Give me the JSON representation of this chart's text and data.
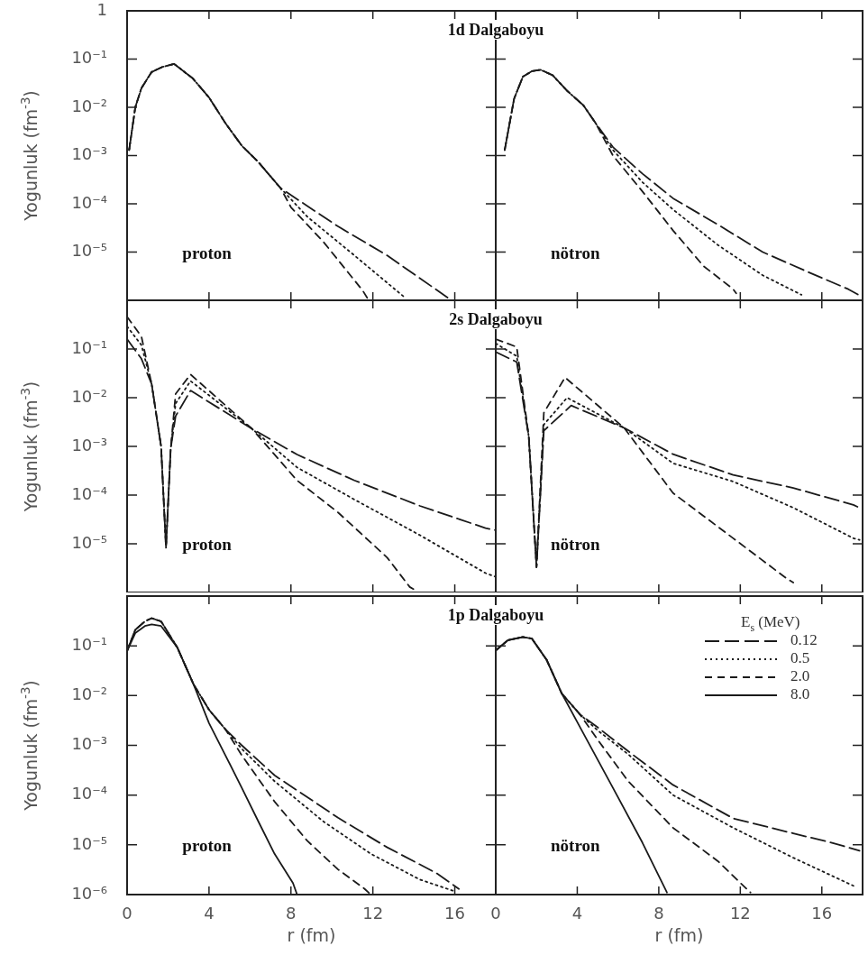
{
  "chart_data": [
    {
      "type": "line",
      "title": "1d Dalgaboyu",
      "ylabel": "Yogunluk (fm$^{-3}$)",
      "annotations": [
        "proton"
      ],
      "log": "y",
      "xlim": [
        0,
        18
      ],
      "xticks": [
        0,
        4,
        8,
        12,
        16
      ],
      "ylim": [
        1e-06,
        1
      ],
      "yticks": [
        {
          "value": 1e-06,
          "label": null
        },
        {
          "value": 1e-05,
          "label": "10⁻⁵"
        },
        {
          "value": 0.0001,
          "label": "10⁻⁴"
        },
        {
          "value": 0.001,
          "label": "10⁻³"
        },
        {
          "value": 0.01,
          "label": "10⁻²"
        },
        {
          "value": 0.1,
          "label": "10⁻¹"
        },
        1
      ],
      "tick_labels": "y",
      "series": [
        {
          "color": "#1a1a1a",
          "line_style": "dashed",
          "x": [
            0.1,
            0.4,
            0.7,
            1.2,
            1.7,
            2.3,
            3.2,
            4.0,
            4.8,
            5.6,
            6.4,
            7.5,
            10.3,
            12.7,
            15.7
          ],
          "values": [
            0.0013,
            0.01,
            0.025,
            0.054,
            0.068,
            0.079,
            0.04,
            0.016,
            0.0047,
            0.0016,
            0.00074,
            0.00021,
            3.4e-05,
            8.5e-06,
            1.1e-06
          ]
        },
        {
          "color": "#1a1a1a",
          "line_style": "dotted",
          "x": [
            0.1,
            0.4,
            0.7,
            1.2,
            1.7,
            2.3,
            3.2,
            4.0,
            4.8,
            5.6,
            6.4,
            7.5,
            8.8,
            11.1,
            13.5
          ],
          "values": [
            0.0013,
            0.01,
            0.025,
            0.054,
            0.068,
            0.079,
            0.04,
            0.016,
            0.0047,
            0.0016,
            0.00074,
            0.00021,
            5.4e-05,
            8.5e-06,
            1.2e-06
          ]
        },
        {
          "color": "#1a1a1a",
          "line_style": "dashed",
          "x": [
            0.1,
            0.4,
            0.7,
            1.2,
            1.7,
            2.3,
            3.2,
            4.0,
            4.8,
            5.6,
            6.4,
            7.5,
            8.0,
            9.6,
            11.5,
            11.8
          ],
          "values": [
            0.0013,
            0.01,
            0.025,
            0.054,
            0.068,
            0.079,
            0.04,
            0.016,
            0.0047,
            0.0016,
            0.00074,
            0.00021,
            8.5e-05,
            1.6e-05,
            1.6e-06,
            1e-06
          ]
        }
      ]
    },
    {
      "type": "line",
      "annotations": [
        "nötron"
      ],
      "log": "y",
      "xlim": [
        0,
        18
      ],
      "xticks": [
        0,
        4,
        8,
        12,
        16
      ],
      "ylim": [
        1e-06,
        1
      ],
      "yticks": [
        1e-06,
        1e-05,
        0.0001,
        0.001,
        0.01,
        0.1,
        1
      ],
      "tick_labels": false,
      "series": [
        {
          "color": "#1a1a1a",
          "line_style": "dashed",
          "x": [
            0.44,
            0.9,
            1.33,
            1.77,
            2.2,
            2.8,
            3.5,
            4.3,
            4.9,
            5.75,
            7.2,
            8.7,
            10.9,
            13.1,
            15.3,
            17.3,
            17.8
          ],
          "values": [
            0.0013,
            0.015,
            0.043,
            0.056,
            0.06,
            0.046,
            0.022,
            0.011,
            0.0047,
            0.0015,
            0.00042,
            0.00013,
            3.7e-05,
            1e-05,
            3.9e-06,
            1.7e-06,
            1.3e-06
          ]
        },
        {
          "color": "#1a1a1a",
          "line_style": "dotted",
          "x": [
            0.44,
            0.9,
            1.33,
            1.77,
            2.2,
            2.8,
            3.5,
            4.3,
            4.9,
            5.75,
            7.2,
            8.7,
            10.9,
            13.1,
            15.0
          ],
          "values": [
            0.0013,
            0.015,
            0.043,
            0.056,
            0.06,
            0.046,
            0.022,
            0.011,
            0.0047,
            0.0013,
            0.00028,
            7.6e-05,
            1.4e-05,
            3.3e-06,
            1.3e-06
          ]
        },
        {
          "color": "#1a1a1a",
          "line_style": "dashed",
          "x": [
            0.44,
            0.9,
            1.33,
            1.77,
            2.2,
            2.8,
            3.5,
            4.3,
            4.9,
            5.75,
            7.2,
            8.7,
            10.2,
            11.65,
            11.8
          ],
          "values": [
            0.0013,
            0.015,
            0.043,
            0.056,
            0.06,
            0.046,
            0.022,
            0.011,
            0.0047,
            0.001,
            0.00018,
            2.8e-05,
            5.1e-06,
            1.7e-06,
            1.4e-06
          ]
        }
      ]
    },
    {
      "type": "line",
      "title": "2s Dalgaboyu",
      "ylabel": "Yogunluk (fm$^{-3}$)",
      "annotations": [
        "proton"
      ],
      "log": "y",
      "xlim": [
        0,
        18
      ],
      "xticks": [
        0,
        4,
        8,
        12,
        16
      ],
      "ylim": [
        1e-06,
        1
      ],
      "yticks": [
        {
          "value": 1e-06,
          "label": null
        },
        {
          "value": 1e-05,
          "label": "10⁻⁵"
        },
        {
          "value": 0.0001,
          "label": "10⁻⁴"
        },
        {
          "value": 0.001,
          "label": "10⁻³"
        },
        {
          "value": 0.01,
          "label": "10⁻²"
        },
        {
          "value": 0.1,
          "label": "10⁻¹"
        },
        {
          "value": 1,
          "label": null
        }
      ],
      "tick_labels": "y",
      "series": [
        {
          "color": "#1a1a1a",
          "line_style": "dashed",
          "x": [
            0,
            0.7,
            1.2,
            1.66,
            1.9,
            2.13,
            2.37,
            3.1,
            6.1,
            8.3,
            11.1,
            14.3,
            17.5,
            18.0
          ],
          "values": [
            0.16,
            0.063,
            0.019,
            0.001,
            8.3e-06,
            0.00091,
            0.0042,
            0.014,
            0.0023,
            0.00068,
            0.0002,
            6e-05,
            2.1e-05,
            1.9e-05
          ]
        },
        {
          "color": "#1a1a1a",
          "line_style": "dotted",
          "x": [
            0,
            0.7,
            1.2,
            1.66,
            1.9,
            2.13,
            2.37,
            3.1,
            6.1,
            8.3,
            11.1,
            14.3,
            17.5,
            18.0
          ],
          "values": [
            0.29,
            0.12,
            0.019,
            0.001,
            8.3e-06,
            0.00091,
            0.0076,
            0.022,
            0.0023,
            0.00037,
            8.1e-05,
            1.5e-05,
            2.5e-06,
            2.1e-06
          ]
        },
        {
          "color": "#1a1a1a",
          "line_style": "dashed",
          "x": [
            0,
            0.7,
            1.2,
            1.66,
            1.9,
            2.13,
            2.37,
            3.1,
            6.1,
            8.3,
            10.3,
            12.7,
            13.8,
            14.1
          ],
          "values": [
            0.46,
            0.18,
            0.019,
            0.001,
            8.3e-06,
            0.00091,
            0.012,
            0.03,
            0.0023,
            0.0002,
            4.4e-05,
            5.2e-06,
            1.3e-06,
            1.1e-06
          ]
        }
      ]
    },
    {
      "type": "line",
      "annotations": [
        "nötron"
      ],
      "log": "y",
      "xlim": [
        0,
        18
      ],
      "xticks": [
        0,
        4,
        8,
        12,
        16
      ],
      "ylim": [
        1e-06,
        1
      ],
      "yticks": [
        1e-06,
        1e-05,
        0.0001,
        0.001,
        0.01,
        0.1,
        1
      ],
      "tick_labels": false,
      "series": [
        {
          "color": "#1a1a1a",
          "line_style": "dashed",
          "x": [
            0,
            1.03,
            1.62,
            2.0,
            2.36,
            3.7,
            6.3,
            8.7,
            11.65,
            14.6,
            17.55,
            17.85
          ],
          "values": [
            0.087,
            0.054,
            0.0016,
            3.3e-06,
            0.0021,
            0.0069,
            0.0024,
            0.00069,
            0.00026,
            0.00014,
            6.3e-05,
            5.5e-05
          ]
        },
        {
          "color": "#1a1a1a",
          "line_style": "dotted",
          "x": [
            0,
            1.03,
            1.62,
            2.0,
            2.36,
            3.5,
            6.3,
            8.7,
            11.65,
            14.6,
            17.55,
            17.85
          ],
          "values": [
            0.13,
            0.071,
            0.0016,
            3.3e-06,
            0.0028,
            0.01,
            0.0024,
            0.00045,
            0.00019,
            5.5e-05,
            1.3e-05,
            1.2e-05
          ]
        },
        {
          "color": "#1a1a1a",
          "line_style": "dashed",
          "x": [
            0,
            1.03,
            1.62,
            2.0,
            2.36,
            3.4,
            6.3,
            8.7,
            11.65,
            14.3,
            14.6
          ],
          "values": [
            0.16,
            0.11,
            0.0016,
            3.3e-06,
            0.0049,
            0.026,
            0.0024,
            0.00011,
            1.3e-05,
            1.9e-06,
            1.6e-06
          ]
        }
      ]
    },
    {
      "type": "line",
      "title": "1p Dalgaboyu",
      "xlabel": "r (fm)",
      "ylabel": "Yogunluk (fm$^{-3}$)",
      "annotations": [
        "proton"
      ],
      "log": "y",
      "xlim": [
        0,
        18
      ],
      "xticks": [
        0,
        4,
        8,
        12,
        16
      ],
      "ylim": [
        1e-06,
        1
      ],
      "yticks": [
        {
          "value": 1e-06,
          "label": "10⁻⁶"
        },
        {
          "value": 1e-05,
          "label": "10⁻⁵"
        },
        {
          "value": 0.0001,
          "label": "10⁻⁴"
        },
        {
          "value": 0.001,
          "label": "10⁻³"
        },
        {
          "value": 0.01,
          "label": "10⁻²"
        },
        {
          "value": 0.1,
          "label": "10⁻¹"
        },
        {
          "value": 1,
          "label": null
        }
      ],
      "series": [
        {
          "color": "#1a1a1a",
          "line_style": "dashed",
          "x": [
            0,
            0.4,
            0.87,
            1.2,
            1.66,
            2.45,
            3.24,
            4.0,
            4.8,
            5.6,
            7.2,
            10.3,
            12.7,
            15.1,
            16.2
          ],
          "values": [
            0.079,
            0.21,
            0.31,
            0.36,
            0.31,
            0.093,
            0.017,
            0.0052,
            0.0021,
            0.001,
            0.00025,
            3.5e-05,
            8.9e-06,
            2.7e-06,
            1.3e-06
          ]
        },
        {
          "color": "#1a1a1a",
          "line_style": "dotted",
          "x": [
            0,
            0.4,
            0.87,
            1.2,
            1.66,
            2.45,
            3.24,
            4.0,
            4.8,
            5.6,
            7.2,
            9.56,
            11.9,
            14.3,
            15.9
          ],
          "values": [
            0.079,
            0.21,
            0.31,
            0.36,
            0.31,
            0.093,
            0.017,
            0.0052,
            0.0021,
            0.00085,
            0.00019,
            3e-05,
            6.6e-06,
            2e-06,
            1.2e-06
          ]
        },
        {
          "color": "#1a1a1a",
          "line_style": "dashed",
          "x": [
            0,
            0.4,
            0.87,
            1.2,
            1.66,
            2.45,
            3.24,
            4.0,
            4.8,
            5.6,
            7.2,
            8.8,
            10.3,
            11.6,
            11.9
          ],
          "values": [
            0.079,
            0.21,
            0.31,
            0.36,
            0.31,
            0.093,
            0.017,
            0.0052,
            0.0021,
            0.00063,
            7.4e-05,
            1.2e-05,
            3.2e-06,
            1.3e-06,
            1e-06
          ]
        },
        {
          "color": "#1a1a1a",
          "line_style": "solid",
          "x": [
            0,
            0.4,
            0.87,
            1.2,
            1.66,
            2.45,
            3.24,
            4.0,
            4.8,
            5.6,
            6.4,
            7.2,
            8.1,
            8.3
          ],
          "values": [
            0.079,
            0.18,
            0.25,
            0.27,
            0.25,
            0.093,
            0.017,
            0.0028,
            0.00063,
            0.00014,
            3e-05,
            6.6e-06,
            1.7e-06,
            1e-06
          ]
        }
      ]
    },
    {
      "type": "line",
      "xlabel": "r (fm)",
      "annotations": [
        "nötron"
      ],
      "legend": "top right",
      "legend_title": "E$_{s}$ (MeV)",
      "log": "y",
      "xlim": [
        0,
        18
      ],
      "xticks": [
        0,
        4,
        8,
        12,
        16
      ],
      "ylim": [
        1e-06,
        1
      ],
      "yticks": [
        1e-06,
        1e-05,
        0.0001,
        0.001,
        0.01,
        0.1,
        1
      ],
      "tick_labels": "x",
      "series": [
        {
          "name": "0.12",
          "color": "#1a1a1a",
          "line_style": "dashed",
          "x": [
            0,
            0.6,
            1.33,
            1.77,
            2.5,
            3.24,
            4.13,
            5.0,
            6.5,
            8.7,
            11.65,
            14.6,
            16.5,
            17.85
          ],
          "values": [
            0.081,
            0.13,
            0.15,
            0.14,
            0.052,
            0.011,
            0.0042,
            0.0023,
            0.00076,
            0.00016,
            3.4e-05,
            1.7e-05,
            1.1e-05,
            7.6e-06
          ]
        },
        {
          "name": "0.5",
          "color": "#1a1a1a",
          "line_style": "dotted",
          "x": [
            0,
            0.6,
            1.33,
            1.77,
            2.5,
            3.24,
            4.13,
            5.0,
            6.5,
            8.7,
            11.65,
            14.6,
            17.55
          ],
          "values": [
            0.081,
            0.13,
            0.15,
            0.14,
            0.052,
            0.011,
            0.0042,
            0.002,
            0.00066,
            0.0001,
            2.2e-05,
            5.5e-06,
            1.5e-06
          ]
        },
        {
          "name": "2.0",
          "color": "#1a1a1a",
          "line_style": "dashed",
          "x": [
            0,
            0.6,
            1.33,
            1.77,
            2.5,
            3.24,
            4.13,
            5.0,
            6.5,
            8.7,
            10.9,
            11.95,
            12.5
          ],
          "values": [
            0.081,
            0.13,
            0.15,
            0.14,
            0.052,
            0.011,
            0.0042,
            0.0013,
            0.00019,
            2.2e-05,
            4.7e-06,
            1.8e-06,
            1.1e-06
          ]
        },
        {
          "name": "8.0",
          "color": "#1a1a1a",
          "line_style": "solid",
          "x": [
            0,
            0.6,
            1.33,
            1.77,
            2.5,
            3.24,
            4.28,
            5.75,
            7.2,
            8.4
          ],
          "values": [
            0.081,
            0.13,
            0.15,
            0.14,
            0.052,
            0.011,
            0.0018,
            0.00014,
            1.1e-05,
            1.1e-06
          ]
        }
      ]
    }
  ]
}
